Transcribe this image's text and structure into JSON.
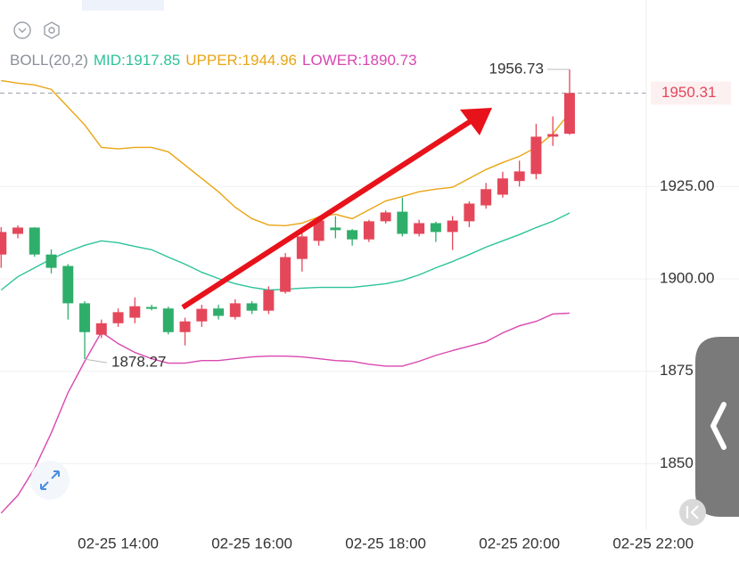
{
  "chart_data": {
    "type": "candlestick",
    "indicator": "BOLL(20,2)",
    "x": [
      "02-25 12:15",
      "02-25 12:30",
      "02-25 12:45",
      "02-25 13:00",
      "02-25 13:15",
      "02-25 13:30",
      "02-25 13:45",
      "02-25 14:00",
      "02-25 14:15",
      "02-25 14:30",
      "02-25 14:45",
      "02-25 15:00",
      "02-25 15:15",
      "02-25 15:30",
      "02-25 15:45",
      "02-25 16:00",
      "02-25 16:15",
      "02-25 16:30",
      "02-25 16:45",
      "02-25 17:00",
      "02-25 17:15",
      "02-25 17:30",
      "02-25 17:45",
      "02-25 18:00",
      "02-25 18:15",
      "02-25 18:30",
      "02-25 18:45",
      "02-25 19:00",
      "02-25 19:15",
      "02-25 19:30",
      "02-25 19:45",
      "02-25 20:00",
      "02-25 20:15",
      "02-25 20:30",
      "02-25 20:45"
    ],
    "open": [
      1906.6,
      1912.2,
      1913.9,
      1906.6,
      1903.5,
      1893.4,
      1884.9,
      1888,
      1889.5,
      1892.4,
      1892,
      1885.6,
      1888.5,
      1892,
      1889.7,
      1893.4,
      1891.4,
      1896.5,
      1905.4,
      1910.3,
      1913.9,
      1913.2,
      1910.7,
      1915.6,
      1918.2,
      1912.2,
      1915.1,
      1912.7,
      1915.6,
      1919.9,
      1922.8,
      1926.5,
      1928.4,
      1938.5,
      1939.3
    ],
    "high": [
      1914,
      1914.5,
      1914,
      1908,
      1904,
      1894,
      1889,
      1892,
      1895,
      1893,
      1892.5,
      1889.5,
      1893,
      1893,
      1894.5,
      1894,
      1898,
      1907,
      1913,
      1917,
      1917,
      1913.5,
      1916,
      1918.5,
      1922,
      1916,
      1915.5,
      1917,
      1921,
      1926,
      1929,
      1932,
      1942,
      1944,
      1956.73
    ],
    "low": [
      1903,
      1911,
      1906,
      1901.5,
      1889,
      1878.27,
      1884,
      1887,
      1888,
      1891.5,
      1885,
      1882,
      1887,
      1889,
      1889,
      1890.5,
      1890.5,
      1896,
      1902,
      1909,
      1911,
      1909,
      1910,
      1915,
      1911.5,
      1911.5,
      1910,
      1907.8,
      1914,
      1919,
      1922,
      1925,
      1927,
      1936,
      1939
    ],
    "close": [
      1912.7,
      1913.9,
      1906.6,
      1903,
      1893.4,
      1885.6,
      1888,
      1891,
      1892.6,
      1891.9,
      1885.6,
      1888.5,
      1891.9,
      1890,
      1893.4,
      1891.4,
      1897,
      1905.9,
      1911.5,
      1915.8,
      1913.2,
      1910.7,
      1915.6,
      1918,
      1912.2,
      1915.1,
      1912.7,
      1915.8,
      1920.4,
      1924.3,
      1927.2,
      1929.1,
      1938.5,
      1939.2,
      1950.31
    ],
    "up_color": "#e5475a",
    "down_color": "#2fae6b",
    "series": [
      {
        "name": "MID",
        "color": "#2cc39a",
        "values": [
          1897.0,
          1900.6,
          1903.0,
          1905.4,
          1907.4,
          1909.1,
          1910.3,
          1909.8,
          1908.8,
          1907.9,
          1905.9,
          1904.0,
          1901.8,
          1900.1,
          1898.7,
          1897.7,
          1897.0,
          1897.2,
          1897.5,
          1897.7,
          1897.7,
          1897.7,
          1898.2,
          1898.7,
          1899.6,
          1901.1,
          1903.0,
          1904.7,
          1906.6,
          1908.6,
          1910.3,
          1912.0,
          1913.9,
          1915.6,
          1917.85
        ]
      },
      {
        "name": "UPPER",
        "color": "#eaa514",
        "values": [
          1953.7,
          1953.0,
          1952.5,
          1951.3,
          1946.5,
          1941.7,
          1935.6,
          1935.2,
          1935.6,
          1935.6,
          1934.4,
          1930.8,
          1927.2,
          1923.6,
          1919.4,
          1916.3,
          1914.6,
          1914.4,
          1915.1,
          1916.8,
          1917.5,
          1916.3,
          1918.7,
          1921.1,
          1922.3,
          1923.6,
          1924.3,
          1924.8,
          1927.2,
          1929.6,
          1931.5,
          1933.2,
          1935.6,
          1939.3,
          1944.96
        ]
      },
      {
        "name": "LOWER",
        "color": "#d947b0",
        "values": [
          1836.6,
          1841.4,
          1848.7,
          1858.3,
          1869.2,
          1877.7,
          1885.6,
          1882.5,
          1880.1,
          1878.4,
          1877.2,
          1877.2,
          1877.9,
          1877.9,
          1878.4,
          1878.9,
          1879.1,
          1879.1,
          1878.9,
          1878.4,
          1877.9,
          1877.7,
          1876.9,
          1876.4,
          1876.4,
          1877.7,
          1879.3,
          1880.6,
          1881.8,
          1883.0,
          1885.4,
          1887.3,
          1888.5,
          1890.5,
          1890.73
        ]
      }
    ],
    "xlim": [
      "02-25 12:14",
      "02-25 23:17"
    ],
    "xticks": [
      "02-25 14:00",
      "02-25 16:00",
      "02-25 18:00",
      "02-25 20:00",
      "02-25 22:00"
    ],
    "ylim": [
      1832,
      1975.5
    ],
    "yticks": [
      {
        "value": 1925,
        "label": "1925.00"
      },
      {
        "value": 1900,
        "label": "1900.00"
      },
      1875,
      1850
    ],
    "grid": true
  }
}
